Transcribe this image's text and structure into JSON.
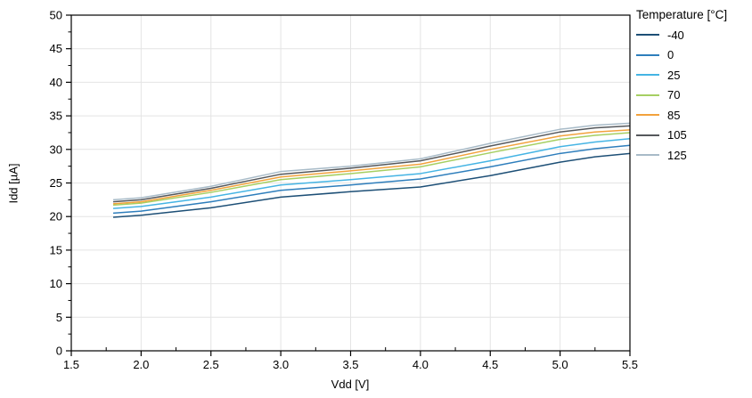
{
  "chart_data": {
    "type": "line",
    "title": "",
    "xlabel": "Vdd [V]",
    "ylabel": "Idd [µA]",
    "legend_title": "Temperature [°C]",
    "legend_position": "outside-top-right",
    "grid": true,
    "xlim": [
      1.5,
      5.5
    ],
    "ylim": [
      0,
      50
    ],
    "x_major_ticks": [
      1.5,
      2,
      2.5,
      3,
      3.5,
      4,
      4.5,
      5,
      5.5
    ],
    "x_tick_labels": [
      "1.5",
      "2.0",
      "2.5",
      "3.0",
      "3.5",
      "4.0",
      "4.5",
      "5.0",
      "5.5"
    ],
    "x_minor_ticks": [
      1.75,
      2.25,
      2.75,
      3.25,
      3.75,
      4.25,
      4.75,
      5.25
    ],
    "y_major_ticks": [
      0,
      5,
      10,
      15,
      20,
      25,
      30,
      35,
      40,
      45,
      50
    ],
    "y_tick_labels": [
      "0",
      "5",
      "10",
      "15",
      "20",
      "25",
      "30",
      "35",
      "40",
      "45",
      "50"
    ],
    "y_minor_ticks": [
      2.5,
      7.5,
      12.5,
      17.5,
      22.5,
      27.5,
      32.5,
      37.5,
      42.5,
      47.5
    ],
    "x": [
      1.8,
      2.0,
      2.5,
      3.0,
      3.5,
      4.0,
      4.5,
      5.0,
      5.25,
      5.5
    ],
    "series": [
      {
        "name": "-40",
        "color": "#1d4f76",
        "values": [
          19.9,
          20.2,
          21.3,
          22.9,
          23.7,
          24.4,
          26.1,
          28.1,
          28.9,
          29.4
        ]
      },
      {
        "name": "0",
        "color": "#2e7ebc",
        "values": [
          20.5,
          20.8,
          22.2,
          23.9,
          24.7,
          25.6,
          27.4,
          29.4,
          30.1,
          30.6
        ]
      },
      {
        "name": "25",
        "color": "#45b4e4",
        "values": [
          21.2,
          21.5,
          22.9,
          24.7,
          25.5,
          26.4,
          28.3,
          30.4,
          31.1,
          31.6
        ]
      },
      {
        "name": "70",
        "color": "#a6cf62",
        "values": [
          21.7,
          22.0,
          23.6,
          25.5,
          26.4,
          27.4,
          29.5,
          31.5,
          32.1,
          32.5
        ]
      },
      {
        "name": "85",
        "color": "#f2a23c",
        "values": [
          21.9,
          22.2,
          23.9,
          25.9,
          26.8,
          27.8,
          30.0,
          32.0,
          32.6,
          32.9
        ]
      },
      {
        "name": "105",
        "color": "#55585c",
        "values": [
          22.2,
          22.5,
          24.2,
          26.3,
          27.2,
          28.3,
          30.5,
          32.6,
          33.2,
          33.5
        ]
      },
      {
        "name": "125",
        "color": "#a8bbc8",
        "values": [
          22.5,
          22.8,
          24.5,
          26.7,
          27.5,
          28.6,
          30.9,
          33.0,
          33.6,
          33.9
        ]
      }
    ],
    "axis_color": "#000000",
    "grid_color": "#e4e4e4",
    "background": "#ffffff",
    "line_width": 1.5
  }
}
